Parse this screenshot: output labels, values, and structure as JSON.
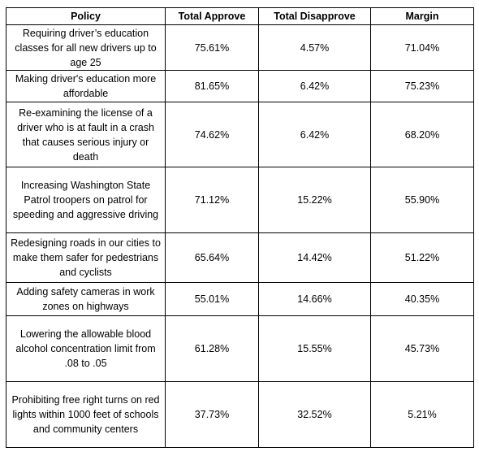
{
  "table": {
    "headers": [
      "Policy",
      "Total Approve",
      "Total Disapprove",
      "Margin"
    ],
    "rows": [
      {
        "policy": "Requiring driver’s education classes for all new drivers up to age 25",
        "approve": "75.61%",
        "disapprove": "4.57%",
        "margin": "71.04%"
      },
      {
        "policy": "Making driver's education more affordable",
        "approve": "81.65%",
        "disapprove": "6.42%",
        "margin": "75.23%"
      },
      {
        "policy": "Re-examining the license of a driver who is at fault in a crash that causes serious injury or death",
        "approve": "74.62%",
        "disapprove": "6.42%",
        "margin": "68.20%"
      },
      {
        "policy": "Increasing Washington State Patrol troopers on patrol for speeding and aggressive driving",
        "approve": "71.12%",
        "disapprove": "15.22%",
        "margin": "55.90%"
      },
      {
        "policy": "Redesigning roads in our cities to make them safer for pedestrians and cyclists",
        "approve": "65.64%",
        "disapprove": "14.42%",
        "margin": "51.22%"
      },
      {
        "policy": "Adding safety cameras in work zones on highways",
        "approve": "55.01%",
        "disapprove": "14.66%",
        "margin": "40.35%"
      },
      {
        "policy": "Lowering the allowable blood alcohol concentration limit from .08 to .05",
        "approve": "61.28%",
        "disapprove": "15.55%",
        "margin": "45.73%"
      },
      {
        "policy": "Prohibiting free right turns on red lights within 1000 feet of schools and community centers",
        "approve": "37.73%",
        "disapprove": "32.52%",
        "margin": "5.21%"
      }
    ]
  }
}
